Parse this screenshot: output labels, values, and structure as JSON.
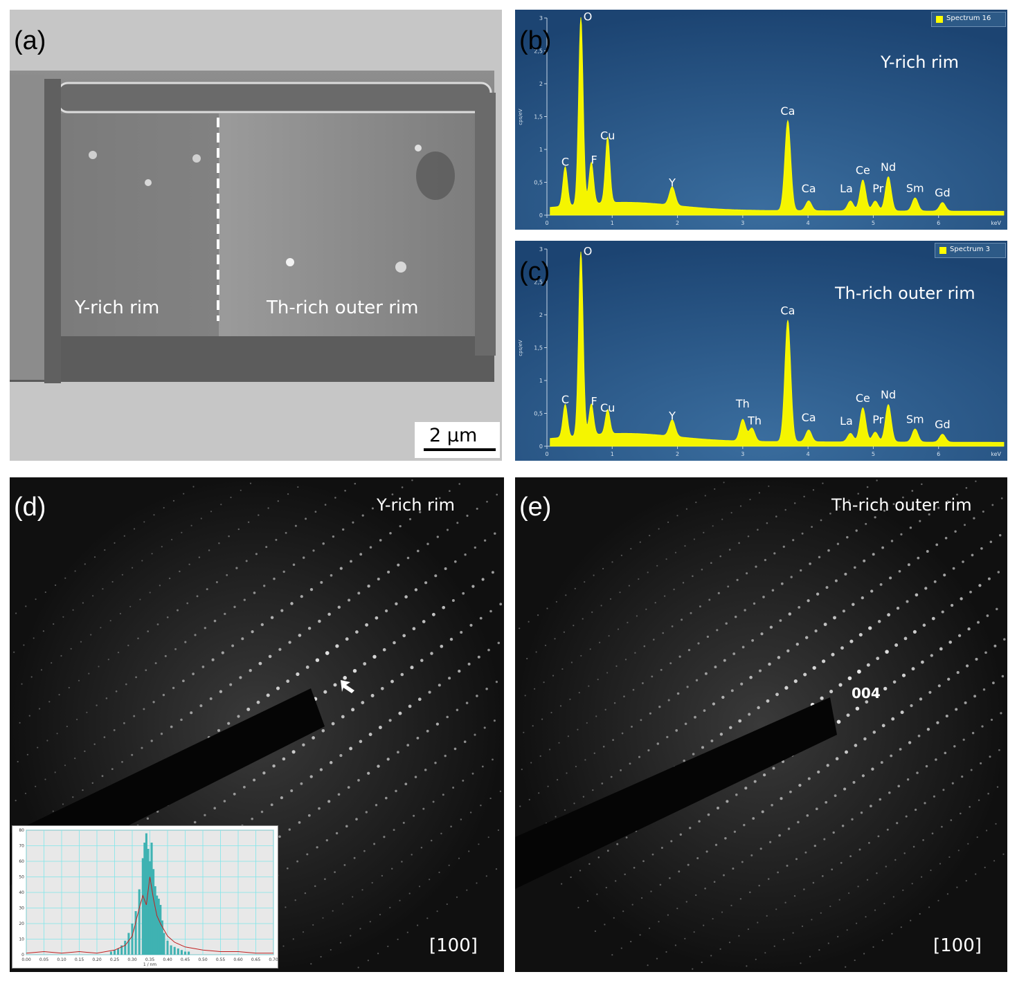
{
  "panel_a": {
    "label": "(a)",
    "region_left": "Y-rich rim",
    "region_right": "Th-rich outer rim",
    "scalebar": "2 µm"
  },
  "panel_b": {
    "label": "(b)",
    "legend": "Spectrum 16",
    "title": "Y-rich rim",
    "ylabel": "cps/eV",
    "xlabel": "keV",
    "peak_labels": [
      "O",
      "C",
      "F",
      "Cu",
      "Y",
      "Ca",
      "Ca",
      "La",
      "Ce",
      "Pr",
      "Nd",
      "Sm",
      "Gd"
    ]
  },
  "panel_c": {
    "label": "(c)",
    "legend": "Spectrum 3",
    "title": "Th-rich outer rim",
    "ylabel": "cps/eV",
    "xlabel": "keV",
    "peak_labels": [
      "O",
      "C",
      "F",
      "Cu",
      "Y",
      "Th",
      "Th",
      "Ca",
      "Ca",
      "La",
      "Ce",
      "Pr",
      "Nd",
      "Sm",
      "Gd"
    ]
  },
  "panel_d": {
    "label": "(d)",
    "title": "Y-rich rim",
    "zone_axis": "[100]"
  },
  "panel_e": {
    "label": "(e)",
    "title": "Th-rich outer rim",
    "zone_axis": "[100]",
    "reflection": "004"
  },
  "chart_data": [
    {
      "type": "area",
      "panel": "b",
      "xlabel": "keV",
      "ylabel": "cps/eV",
      "xlim": [
        0,
        7
      ],
      "ylim": [
        0,
        3
      ],
      "xticks": [
        0,
        1,
        2,
        3,
        4,
        5,
        6
      ],
      "yticks": [
        "0",
        "0,5",
        "1",
        "1,5",
        "2",
        "2,5",
        "3"
      ],
      "legend": "Spectrum 16",
      "peaks": [
        {
          "label": "C",
          "x": 0.28,
          "y": 0.65
        },
        {
          "label": "O",
          "x": 0.52,
          "y": 2.9
        },
        {
          "label": "F",
          "x": 0.68,
          "y": 0.68
        },
        {
          "label": "Cu",
          "x": 0.93,
          "y": 1.05
        },
        {
          "label": "Y",
          "x": 1.92,
          "y": 0.33
        },
        {
          "label": "Ca",
          "x": 3.69,
          "y": 1.42
        },
        {
          "label": "Ca",
          "x": 4.01,
          "y": 0.2
        },
        {
          "label": "La",
          "x": 4.65,
          "y": 0.2
        },
        {
          "label": "Ce",
          "x": 4.84,
          "y": 0.52
        },
        {
          "label": "Pr",
          "x": 5.03,
          "y": 0.2
        },
        {
          "label": "Nd",
          "x": 5.23,
          "y": 0.57
        },
        {
          "label": "Sm",
          "x": 5.64,
          "y": 0.25
        },
        {
          "label": "Gd",
          "x": 6.06,
          "y": 0.18
        }
      ]
    },
    {
      "type": "area",
      "panel": "c",
      "xlabel": "keV",
      "ylabel": "cps/eV",
      "xlim": [
        0,
        7
      ],
      "ylim": [
        0,
        3
      ],
      "xticks": [
        0,
        1,
        2,
        3,
        4,
        5,
        6
      ],
      "yticks": [
        "0",
        "0,5",
        "1",
        "1,5",
        "2",
        "2,5",
        "3"
      ],
      "legend": "Spectrum 3",
      "peaks": [
        {
          "label": "C",
          "x": 0.28,
          "y": 0.55
        },
        {
          "label": "O",
          "x": 0.52,
          "y": 2.85
        },
        {
          "label": "F",
          "x": 0.68,
          "y": 0.52
        },
        {
          "label": "Cu",
          "x": 0.93,
          "y": 0.42
        },
        {
          "label": "Y",
          "x": 1.92,
          "y": 0.3
        },
        {
          "label": "Th",
          "x": 3.0,
          "y": 0.38
        },
        {
          "label": "Th",
          "x": 3.14,
          "y": 0.25
        },
        {
          "label": "Ca",
          "x": 3.69,
          "y": 1.9
        },
        {
          "label": "Ca",
          "x": 4.01,
          "y": 0.23
        },
        {
          "label": "La",
          "x": 4.65,
          "y": 0.18
        },
        {
          "label": "Ce",
          "x": 4.84,
          "y": 0.57
        },
        {
          "label": "Pr",
          "x": 5.03,
          "y": 0.2
        },
        {
          "label": "Nd",
          "x": 5.23,
          "y": 0.62
        },
        {
          "label": "Sm",
          "x": 5.64,
          "y": 0.25
        },
        {
          "label": "Gd",
          "x": 6.06,
          "y": 0.17
        }
      ]
    },
    {
      "type": "bar",
      "panel": "d-inset",
      "xlabel": "1 / nm",
      "xlim": [
        0,
        0.7
      ],
      "ylim": [
        0,
        80
      ],
      "xticks": [
        "0.00",
        "0.05",
        "0.10",
        "0.15",
        "0.20",
        "0.25",
        "0.30",
        "0.35",
        "0.40",
        "0.45",
        "0.50",
        "0.55",
        "0.60",
        "0.65",
        "0.70"
      ],
      "yticks": [
        "0",
        "10",
        "20",
        "30",
        "40",
        "50",
        "60",
        "70",
        "80"
      ],
      "grid": true,
      "bins_x": [
        0.24,
        0.25,
        0.26,
        0.27,
        0.28,
        0.29,
        0.3,
        0.31,
        0.32,
        0.33,
        0.335,
        0.34,
        0.345,
        0.35,
        0.355,
        0.36,
        0.365,
        0.37,
        0.375,
        0.38,
        0.385,
        0.39,
        0.4,
        0.41,
        0.42,
        0.43,
        0.44,
        0.45,
        0.46
      ],
      "bins_y": [
        2,
        3,
        4,
        6,
        9,
        14,
        20,
        28,
        42,
        62,
        72,
        78,
        68,
        60,
        72,
        55,
        44,
        38,
        36,
        32,
        22,
        14,
        9,
        6,
        5,
        4,
        3,
        2,
        2
      ],
      "line_x": [
        0.0,
        0.05,
        0.1,
        0.15,
        0.2,
        0.25,
        0.28,
        0.3,
        0.32,
        0.33,
        0.34,
        0.35,
        0.36,
        0.37,
        0.38,
        0.4,
        0.42,
        0.45,
        0.5,
        0.55,
        0.6,
        0.65,
        0.7
      ],
      "line_y": [
        1,
        2,
        1,
        2,
        1,
        3,
        6,
        12,
        30,
        38,
        32,
        50,
        36,
        25,
        20,
        12,
        8,
        5,
        3,
        2,
        2,
        1,
        1
      ]
    }
  ]
}
